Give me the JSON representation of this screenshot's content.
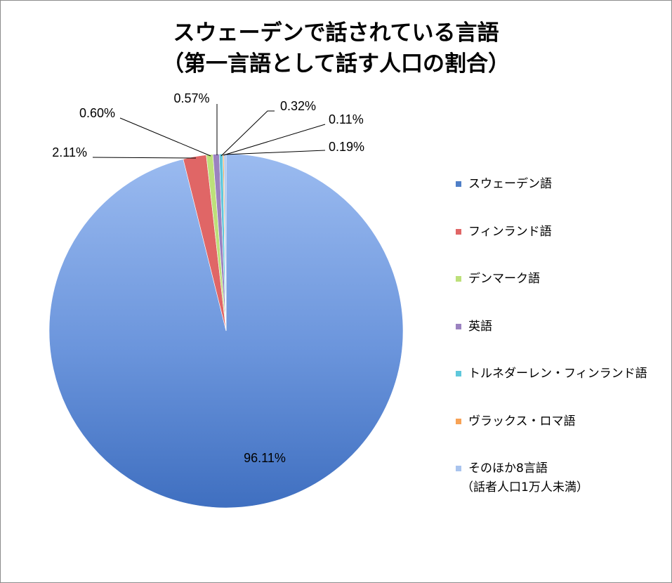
{
  "chart_data": {
    "type": "pie",
    "title": [
      "スウェーデンで話されている言語",
      "（第一言語として話す人口の割合）"
    ],
    "categories": [
      "スウェーデン語",
      "フィンランド語",
      "デンマーク語",
      "英語",
      "トルネダーレン・フィンランド語",
      "ヴラックス・ロマ語",
      "そのほか8言語\n（話者人口1万人未満）"
    ],
    "values": [
      96.11,
      2.11,
      0.6,
      0.57,
      0.32,
      0.11,
      0.19
    ],
    "data_labels": [
      "96.11%",
      "2.11%",
      "0.60%",
      "0.57%",
      "0.32%",
      "0.11%",
      "0.19%"
    ],
    "colors": [
      "#4f7fc7",
      "#e06666",
      "#bde07a",
      "#9b82c0",
      "#5fc8dc",
      "#f7a255",
      "#a9c4ee"
    ],
    "legend_position": "right"
  }
}
